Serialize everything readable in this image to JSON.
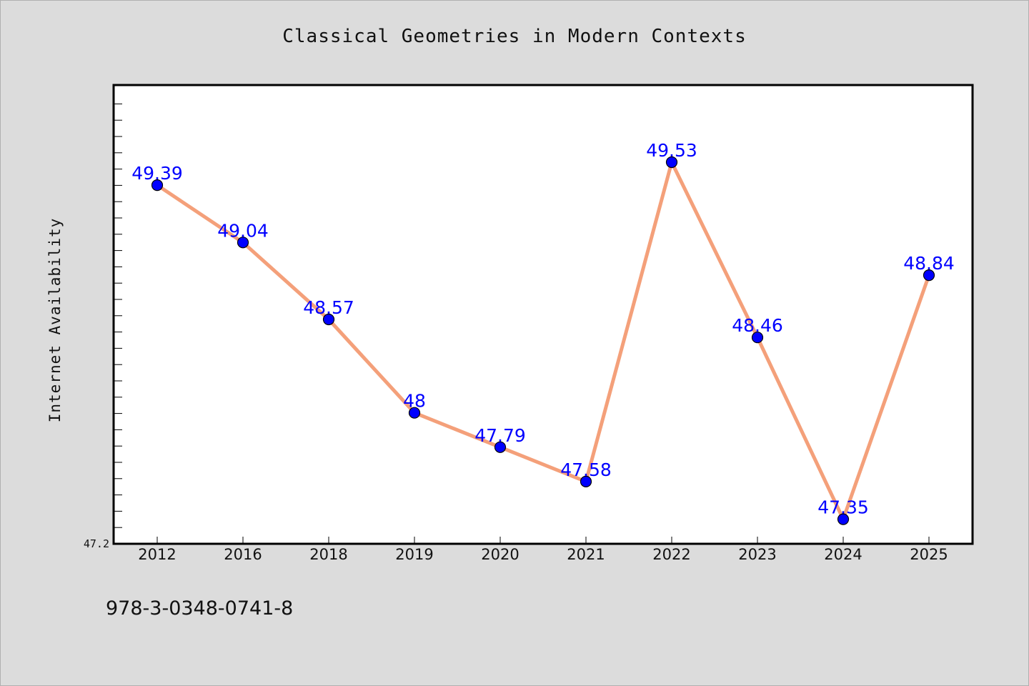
{
  "title": "Classical Geometries in Modern Contexts",
  "footer_text": "978-3-0348-0741-8",
  "colors": {
    "line": "#f4a07a",
    "marker": "#0000ff",
    "label": "#0000ff",
    "background": "#dcdcdc",
    "plot_background": "#ffffff"
  },
  "chart_data": {
    "type": "line",
    "title": "Classical Geometries in Modern Contexts",
    "xlabel": "",
    "ylabel": "Internet Availability",
    "categories": [
      "2012",
      "2016",
      "2018",
      "2019",
      "2020",
      "2021",
      "2022",
      "2023",
      "2024",
      "2025"
    ],
    "series": [
      {
        "values": [
          49.39,
          49.04,
          48.57,
          48.0,
          47.79,
          47.58,
          49.53,
          48.46,
          47.35,
          48.84
        ],
        "data_labels": [
          "49.39",
          "49.04",
          "48.57",
          "48",
          "47.79",
          "47.58",
          "49.53",
          "48.46",
          "47.35",
          "48.84"
        ]
      }
    ],
    "ylim": [
      47.2,
      50.0
    ],
    "y_tick_labels": [
      "47.2"
    ],
    "grid": false,
    "legend": "none"
  }
}
